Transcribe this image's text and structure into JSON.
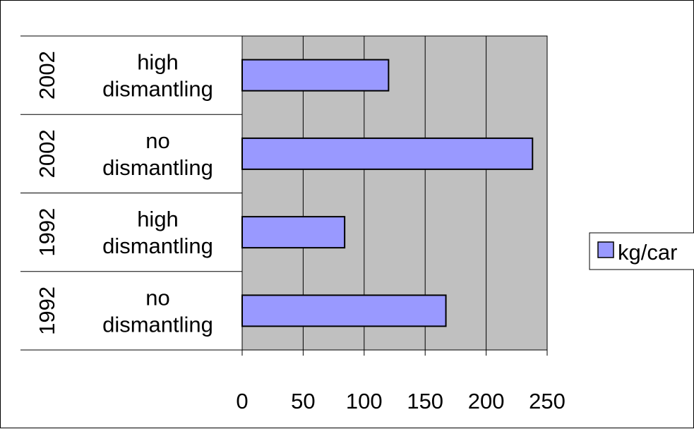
{
  "chart_data": {
    "type": "bar",
    "orientation": "horizontal",
    "categories": [
      {
        "year": "2002",
        "label_lines": [
          "high",
          "dismantling"
        ]
      },
      {
        "year": "2002",
        "label_lines": [
          "no",
          "dismantling"
        ]
      },
      {
        "year": "1992",
        "label_lines": [
          "high",
          "dismantling"
        ]
      },
      {
        "year": "1992",
        "label_lines": [
          "no",
          "dismantling"
        ]
      }
    ],
    "series": [
      {
        "name": "kg/car",
        "values": [
          120,
          238,
          84,
          167
        ]
      }
    ],
    "xlim": [
      0,
      250
    ],
    "xticks": [
      "0",
      "50",
      "100",
      "150",
      "200",
      "250"
    ],
    "title": "",
    "xlabel": "",
    "ylabel": "",
    "grid": "vertical",
    "legend_position": "right",
    "colors": {
      "bar_fill": "#9999FF",
      "plot_background": "#C0C0C0",
      "gridline": "#000000",
      "text": "#000000"
    }
  }
}
